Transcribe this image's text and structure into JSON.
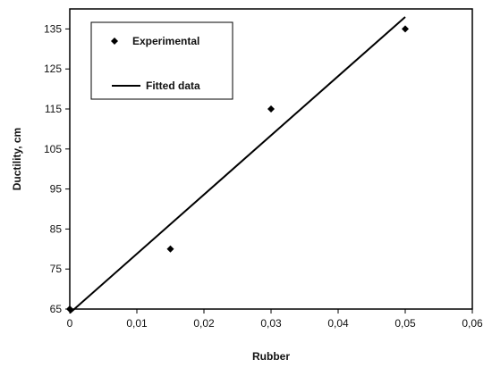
{
  "chart_data": {
    "type": "scatter",
    "xlabel": "Rubber",
    "ylabel": "Ductility, cm",
    "xlim": [
      0,
      0.06
    ],
    "ylim": [
      65,
      140
    ],
    "x_ticks": [
      0,
      0.01,
      0.02,
      0.03,
      0.04,
      0.05,
      0.06
    ],
    "x_tick_labels": [
      "0",
      "0,01",
      "0,02",
      "0,03",
      "0,04",
      "0,05",
      "0,06"
    ],
    "y_ticks": [
      65,
      75,
      85,
      95,
      105,
      115,
      125,
      135
    ],
    "y_tick_labels": [
      "65",
      "75",
      "85",
      "95",
      "105",
      "115",
      "125",
      "135"
    ],
    "grid": false,
    "legend_position": "top-left",
    "series": [
      {
        "name": "Experimental",
        "kind": "scatter",
        "marker": "diamond",
        "color": "#000000",
        "points": [
          {
            "x": 0,
            "y": 65
          },
          {
            "x": 0.015,
            "y": 80
          },
          {
            "x": 0.03,
            "y": 115
          },
          {
            "x": 0.05,
            "y": 135
          }
        ]
      },
      {
        "name": "Fitted data",
        "kind": "line",
        "color": "#000000",
        "points": [
          {
            "x": 0,
            "y": 64
          },
          {
            "x": 0.05,
            "y": 138
          }
        ]
      }
    ]
  }
}
